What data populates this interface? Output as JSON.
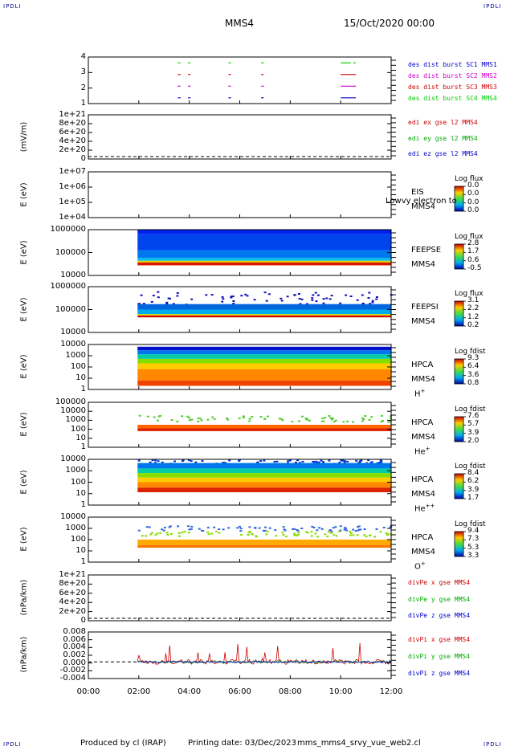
{
  "header": {
    "corner_tl": "IPDLI",
    "corner_tr": "IPDLI",
    "corner_bl": "IPDLI",
    "corner_br": "IPDLI",
    "spacecraft": "MMS4",
    "date": "15/Oct/2020 00:00"
  },
  "footer": {
    "produced": "Produced by cl (IRAP)",
    "printing": "Printing date: 03/Dec/2023",
    "script": "mms_mms4_srvy_vue_web2.cl"
  },
  "chart_data": {
    "type": "stacked-panels",
    "x_ticks": [
      "00:00",
      "02:00",
      "04:00",
      "06:00",
      "08:00",
      "10:00",
      "12:00"
    ],
    "xlim_hours": [
      0,
      12
    ],
    "panels": [
      {
        "id": "burst",
        "type": "scatter",
        "ylabel": "",
        "yticks": [
          "4",
          "3",
          "2",
          "1"
        ],
        "ylim": [
          0.5,
          4.5
        ],
        "legend": [
          {
            "text": "des dist burst SC1 MMS1",
            "color": "#0000cc"
          },
          {
            "text": "des dist burst SC2 MMS2",
            "color": "#cc00cc"
          },
          {
            "text": "des dist burst SC3 MMS3",
            "color": "#cc0000"
          },
          {
            "text": "des dist burst SC4 MMS4",
            "color": "#00cc00"
          }
        ],
        "segments": [
          {
            "level": 4,
            "color": "#00cc00",
            "hours": [
              [
                3.55,
                3.65
              ],
              [
                3.95,
                4.05
              ],
              [
                5.55,
                5.65
              ],
              [
                6.85,
                6.95
              ],
              [
                10.0,
                10.4
              ],
              [
                10.5,
                10.6
              ]
            ]
          },
          {
            "level": 3,
            "color": "#cc0000",
            "hours": [
              [
                3.55,
                3.65
              ],
              [
                3.95,
                4.05
              ],
              [
                5.55,
                5.65
              ],
              [
                6.85,
                6.95
              ],
              [
                10.0,
                10.6
              ]
            ]
          },
          {
            "level": 2,
            "color": "#cc00cc",
            "hours": [
              [
                3.55,
                3.65
              ],
              [
                3.95,
                4.05
              ],
              [
                5.55,
                5.65
              ],
              [
                6.85,
                6.95
              ],
              [
                10.0,
                10.6
              ]
            ]
          },
          {
            "level": 1,
            "color": "#0000cc",
            "hours": [
              [
                3.55,
                3.65
              ],
              [
                3.95,
                4.05
              ],
              [
                5.55,
                5.65
              ],
              [
                6.85,
                6.95
              ],
              [
                10.0,
                10.6
              ]
            ]
          }
        ]
      },
      {
        "id": "edi",
        "type": "line",
        "ylabel": "(mV/m)",
        "yticks": [
          "1e+21",
          "8e+20",
          "6e+20",
          "4e+20",
          "2e+20",
          "0"
        ],
        "ylim": [
          0,
          1.05e+21
        ],
        "legend": [
          {
            "text": "edi ex gse l2 MMS4",
            "color": "#cc0000"
          },
          {
            "text": "edi ey gse l2 MMS4",
            "color": "#00aa00"
          },
          {
            "text": "edi ez gse l2 MMS4",
            "color": "#0000cc"
          }
        ]
      },
      {
        "id": "eis",
        "type": "heatmap",
        "ylabel": "E (eV)",
        "yticks": [
          "1e+07",
          "1e+06",
          "1e+05",
          "1e+04"
        ],
        "instrument": [
          "EIS",
          "MMS4"
        ],
        "overlay": "Lowvy electron to",
        "cb_title": "Log flux",
        "cb_values": [
          "0.0",
          "0.0",
          "0.0",
          "0.0"
        ],
        "bands": []
      },
      {
        "id": "feepse",
        "type": "heatmap",
        "ylabel": "E (eV)",
        "yticks": [
          "1000000",
          "100000",
          "10000"
        ],
        "instrument": [
          "FEEPSE",
          "MMS4"
        ],
        "cb_title": "Log flux",
        "cb_values": [
          "2.8",
          "1.7",
          "0.6",
          "-0.5"
        ],
        "bands": [
          {
            "from": 0.0,
            "to": 0.1,
            "color": "#0022ee"
          },
          {
            "from": 0.1,
            "to": 0.45,
            "color": "#0044ee"
          },
          {
            "from": 0.45,
            "to": 0.62,
            "color": "#0077ee"
          },
          {
            "from": 0.62,
            "to": 0.68,
            "color": "#00bbee"
          },
          {
            "from": 0.68,
            "to": 0.72,
            "color": "#ddcc00"
          },
          {
            "from": 0.72,
            "to": 0.78,
            "color": "#dd1100"
          }
        ]
      },
      {
        "id": "feepsi",
        "type": "heatmap",
        "ylabel": "E (eV)",
        "yticks": [
          "1000000",
          "100000",
          "10000"
        ],
        "instrument": [
          "FEEPSI",
          "MMS4"
        ],
        "cb_title": "Log flux",
        "cb_values": [
          "3.1",
          "2.2",
          "1.2",
          "0.2"
        ],
        "bands": [
          {
            "from": 0.1,
            "to": 0.38,
            "color": "#1111bb",
            "sparse": true
          },
          {
            "from": 0.38,
            "to": 0.5,
            "color": "#0066dd"
          },
          {
            "from": 0.5,
            "to": 0.6,
            "color": "#00aaee"
          },
          {
            "from": 0.6,
            "to": 0.63,
            "color": "#dddd00"
          },
          {
            "from": 0.63,
            "to": 0.67,
            "color": "#cc0000"
          }
        ]
      },
      {
        "id": "hpca-h",
        "type": "heatmap",
        "ylabel": "E (eV)",
        "yticks": [
          "10000",
          "1000",
          "100",
          "10",
          "1"
        ],
        "instrument": [
          "HPCA",
          "MMS4",
          "H",
          "+"
        ],
        "cb_title": "Log fdist",
        "cb_values": [
          "9.3",
          "6.4",
          "3.6",
          "0.8"
        ],
        "bands": [
          {
            "from": 0.05,
            "to": 0.13,
            "color": "#0011cc"
          },
          {
            "from": 0.13,
            "to": 0.22,
            "color": "#0077ee"
          },
          {
            "from": 0.22,
            "to": 0.32,
            "color": "#00ccaa"
          },
          {
            "from": 0.32,
            "to": 0.42,
            "color": "#88dd00"
          },
          {
            "from": 0.42,
            "to": 0.55,
            "color": "#ffcc00"
          },
          {
            "from": 0.55,
            "to": 0.8,
            "color": "#ff8800"
          },
          {
            "from": 0.8,
            "to": 0.92,
            "color": "#ee4400"
          }
        ]
      },
      {
        "id": "hpca-he",
        "type": "heatmap",
        "ylabel": "E (eV)",
        "yticks": [
          "100000",
          "10000",
          "1000",
          "100",
          "10",
          "1"
        ],
        "instrument": [
          "HPCA",
          "MMS4",
          "He",
          "+"
        ],
        "cb_title": "Log fdist",
        "cb_values": [
          "7.6",
          "5.7",
          "3.9",
          "2.0"
        ],
        "bands": [
          {
            "from": 0.28,
            "to": 0.42,
            "color": "#55cc33",
            "sparse": true
          },
          {
            "from": 0.5,
            "to": 0.58,
            "color": "#ff6600"
          },
          {
            "from": 0.58,
            "to": 0.64,
            "color": "#dd2200"
          }
        ]
      },
      {
        "id": "hpca-hepp",
        "type": "heatmap",
        "ylabel": "E (eV)",
        "yticks": [
          "10000",
          "1000",
          "100",
          "10",
          "1"
        ],
        "instrument": [
          "HPCA",
          "MMS4",
          "He",
          "++"
        ],
        "cb_title": "Log fdist",
        "cb_values": [
          "8.4",
          "6.2",
          "3.9",
          "1.7"
        ],
        "bands": [
          {
            "from": 0.0,
            "to": 0.08,
            "color": "#0033cc",
            "sparse": true
          },
          {
            "from": 0.08,
            "to": 0.2,
            "color": "#0077ee"
          },
          {
            "from": 0.2,
            "to": 0.3,
            "color": "#00ccaa"
          },
          {
            "from": 0.3,
            "to": 0.4,
            "color": "#88dd00"
          },
          {
            "from": 0.4,
            "to": 0.5,
            "color": "#ffcc00"
          },
          {
            "from": 0.5,
            "to": 0.62,
            "color": "#ff8800"
          },
          {
            "from": 0.62,
            "to": 0.72,
            "color": "#dd2200"
          }
        ]
      },
      {
        "id": "hpca-o",
        "type": "heatmap",
        "ylabel": "E (eV)",
        "yticks": [
          "10000",
          "1000",
          "100",
          "10",
          "1"
        ],
        "instrument": [
          "HPCA",
          "MMS4",
          "O",
          "+"
        ],
        "cb_title": "Log fdist",
        "cb_values": [
          "9.4",
          "7.3",
          "5.3",
          "3.3"
        ],
        "bands": [
          {
            "from": 0.18,
            "to": 0.3,
            "color": "#3366dd",
            "sparse": true
          },
          {
            "from": 0.3,
            "to": 0.42,
            "color": "#88dd00",
            "sparse": true
          },
          {
            "from": 0.5,
            "to": 0.62,
            "color": "#ffaa00"
          },
          {
            "from": 0.62,
            "to": 0.68,
            "color": "#ff7700"
          }
        ]
      },
      {
        "id": "divpe",
        "type": "line",
        "ylabel": "(nPa/km)",
        "yticks": [
          "1e+21",
          "8e+20",
          "6e+20",
          "4e+20",
          "2e+20",
          "0"
        ],
        "ylim": [
          0,
          1.05e+21
        ],
        "legend": [
          {
            "text": "divPe x gse MMS4",
            "color": "#cc0000"
          },
          {
            "text": "divPe y gse MMS4",
            "color": "#00aa00"
          },
          {
            "text": "divPe z gse MMS4",
            "color": "#0000cc"
          }
        ]
      },
      {
        "id": "divpi",
        "type": "line",
        "ylabel": "(nPa/km)",
        "yticks": [
          "0.008",
          "0.006",
          "0.004",
          "0.002",
          "0.000",
          "-0.002",
          "-0.004"
        ],
        "ylim": [
          -0.005,
          0.009
        ],
        "legend": [
          {
            "text": "divPi x gse MMS4",
            "color": "#cc0000"
          },
          {
            "text": "divPi y gse MMS4",
            "color": "#00aa00"
          },
          {
            "text": "divPi z gse MMS4",
            "color": "#0000cc"
          }
        ]
      }
    ]
  }
}
